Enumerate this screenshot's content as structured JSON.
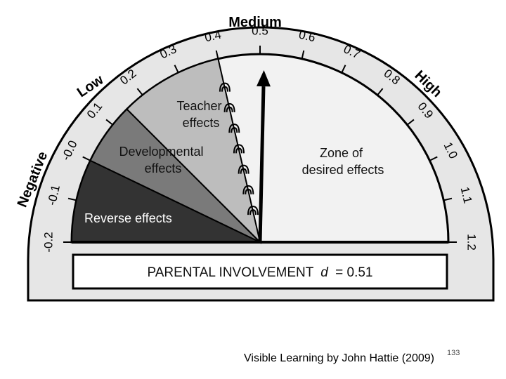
{
  "diagram": {
    "category_labels": {
      "medium": "Medium",
      "low": "Low",
      "high": "High",
      "negative": "Negative"
    },
    "ticks": [
      "-0.2",
      "-0.1",
      "-0.0",
      "0.1",
      "0.2",
      "0.3",
      "0.4",
      "0.5",
      "0.6",
      "0.7",
      "0.8",
      "0.9",
      "1.0",
      "1.1",
      "1.2"
    ],
    "zones": {
      "teacher": [
        "Teacher",
        "effects"
      ],
      "developmental": [
        "Developmental",
        "effects"
      ],
      "desired": [
        "Zone of",
        "desired effects"
      ],
      "reverse": "Reverse effects"
    },
    "result": {
      "label": "PARENTAL INVOLVEMENT",
      "symbol": "d",
      "value_text": "= 0.51",
      "d": 0.51
    },
    "colors": {
      "reverse": "#333333",
      "developmental": "#7a7a7a",
      "teacher": "#bdbdbd",
      "desired": "#f2f2f2",
      "rim": "#e6e6e6"
    }
  },
  "caption": "Visible Learning by John Hattie (2009)",
  "slide_number": "133"
}
